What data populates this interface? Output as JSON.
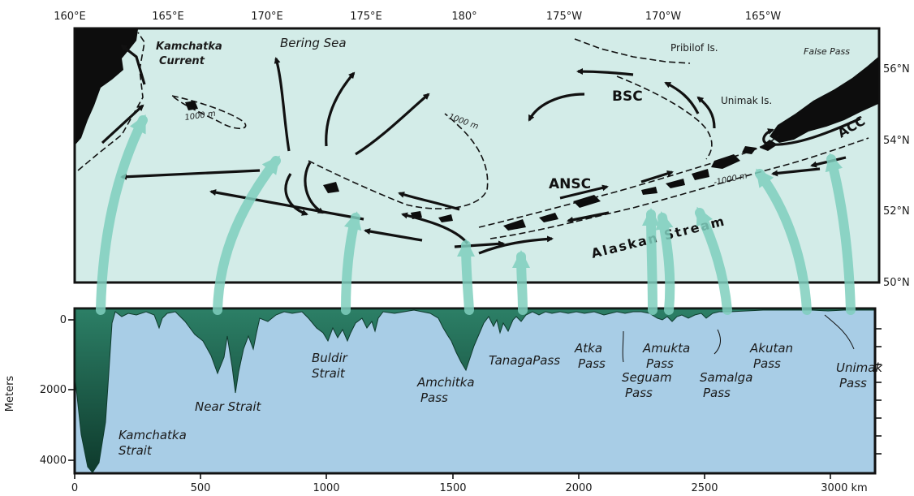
{
  "map": {
    "lon_labels": [
      "160°E",
      "165°E",
      "170°E",
      "175°E",
      "180°",
      "175°W",
      "170°W",
      "165°W"
    ],
    "lat_labels": [
      "56°N",
      "54°N",
      "52°N",
      "50°N"
    ],
    "places": {
      "kamchatka_current": "Kamchatka\nCurrent",
      "bering_sea": "Bering Sea",
      "pribilof": "Pribilof Is.",
      "false_pass": "False Pass",
      "unimak_is": "Unimak Is.",
      "bsc": "BSC",
      "ansc": "ANSC",
      "acc": "ACC",
      "alaskan_stream": "Alaskan Stream"
    },
    "contours": [
      "1000 m",
      "1000 m",
      "-1000 m"
    ]
  },
  "profile": {
    "ylabel": "Meters",
    "depth_ticks": [
      "0",
      "2000",
      "4000"
    ],
    "distance_ticks": [
      "0",
      "500",
      "1000",
      "1500",
      "2000",
      "2500",
      "3000 km"
    ],
    "passes": [
      {
        "id": "kamchatka",
        "label": "Kamchatka\nStrait"
      },
      {
        "id": "near",
        "label": "Near Strait"
      },
      {
        "id": "buldir",
        "label": "Buldir\nStrait"
      },
      {
        "id": "amchitka",
        "label": "Amchitka\nPass"
      },
      {
        "id": "tanaga",
        "label": "TanagaPass"
      },
      {
        "id": "atka",
        "label": "Atka\nPass"
      },
      {
        "id": "seguam",
        "label": "Seguam\nPass"
      },
      {
        "id": "amukta",
        "label": "Amukta\nPass"
      },
      {
        "id": "samalga",
        "label": "Samalga\nPass"
      },
      {
        "id": "akutan",
        "label": "Akutan\nPass"
      },
      {
        "id": "unimak",
        "label": "Unimak\nPass"
      }
    ]
  },
  "colors": {
    "sea": "#d3ece8",
    "profile_water": "#a8cde6",
    "seafloor": "#1f6b55",
    "seafloor_dark": "#0e3a2c",
    "land": "#0d0d0d",
    "flow_arrow": "#7fcfbe"
  }
}
